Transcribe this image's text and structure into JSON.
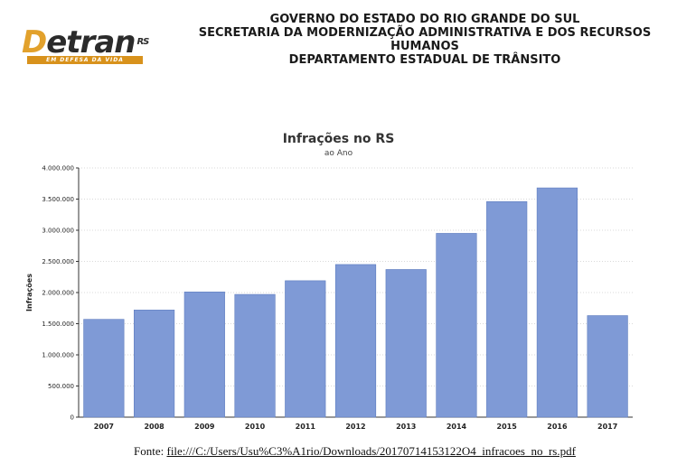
{
  "logo": {
    "brand_d": "D",
    "brand_rest": "etran",
    "brand_suffix": "RS",
    "tagline": "EM DEFESA DA VIDA"
  },
  "header": {
    "line1": "GOVERNO DO ESTADO DO RIO GRANDE DO SUL",
    "line2": "SECRETARIA DA MODERNIZAÇÃO ADMINISTRATIVA E DOS RECURSOS",
    "line3": "HUMANOS",
    "line4": "DEPARTAMENTO ESTADUAL DE TRÂNSITO"
  },
  "colors": {
    "bar": "#7f9ad6",
    "bar_stroke": "#5f7dbf",
    "grid": "#d9d9d9"
  },
  "chart_data": {
    "type": "bar",
    "title": "Infrações no RS",
    "subtitle": "ao Ano",
    "xlabel": "",
    "ylabel": "Infrações",
    "categories": [
      "2007",
      "2008",
      "2009",
      "2010",
      "2011",
      "2012",
      "2013",
      "2014",
      "2015",
      "2016",
      "2017"
    ],
    "values": [
      1570000,
      1720000,
      2010000,
      1970000,
      2190000,
      2450000,
      2370000,
      2950000,
      3460000,
      3680000,
      1630000
    ],
    "ylim": [
      0,
      4000000
    ],
    "yticks": [
      0,
      500000,
      1000000,
      1500000,
      2000000,
      2500000,
      3000000,
      3500000,
      4000000
    ],
    "ytick_labels": [
      "0",
      "500.000",
      "1.000.000",
      "1.500.000",
      "2.000.000",
      "2.500.000",
      "3.000.000",
      "3.500.000",
      "4.000.000"
    ],
    "grid": true,
    "legend": "none"
  },
  "source": {
    "prefix": "Fonte: ",
    "link": "file:///C:/Users/Usu%C3%A1rio/Downloads/20170714153122O4_infracoes_no_rs.pdf"
  }
}
